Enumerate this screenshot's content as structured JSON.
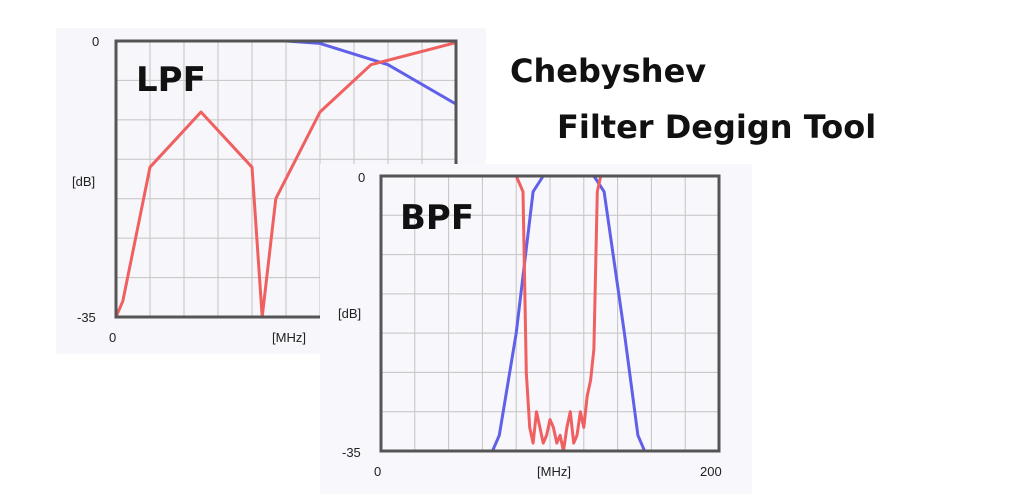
{
  "title": {
    "line1": "Chebyshev",
    "line2": "Filter Degign Tool"
  },
  "lpf": {
    "label": "LPF",
    "y_top": "0",
    "y_bottom": "-35",
    "y_unit": "[dB]",
    "x_start": "0",
    "x_unit": "[MHz]"
  },
  "bpf": {
    "label": "BPF",
    "y_top": "0",
    "y_bottom": "-35",
    "y_unit": "[dB]",
    "x_start": "0",
    "x_unit": "[MHz]",
    "x_end": "200"
  },
  "colors": {
    "transmission": "#6060e8",
    "reflection": "#f06060",
    "frame": "#555555",
    "grid": "#c4c4c4"
  },
  "chart_data": [
    {
      "type": "line",
      "ylim": [
        -35,
        0
      ],
      "grid": true,
      "series": [
        {
          "values": [
            [
              0,
              0
            ],
            [
              0.5,
              0
            ],
            [
              0.6,
              -0.3
            ],
            [
              0.8,
              -3
            ],
            [
              1.0,
              -8
            ],
            [
              1.2,
              -12
            ]
          ]
        },
        {
          "values": [
            [
              0,
              -35
            ],
            [
              0.02,
              -33
            ],
            [
              0.1,
              -16
            ],
            [
              0.25,
              -9
            ],
            [
              0.4,
              -16
            ],
            [
              0.43,
              -35
            ],
            [
              0.47,
              -20
            ],
            [
              0.6,
              -9
            ],
            [
              0.75,
              -3
            ],
            [
              1.0,
              -0.2
            ]
          ]
        }
      ]
    },
    {
      "type": "line",
      "ylim": [
        -35,
        0
      ],
      "grid": true,
      "series": [
        {
          "values": [
            [
              0,
              -35
            ],
            [
              33,
              -35
            ],
            [
              35,
              -33
            ],
            [
              40,
              -20
            ],
            [
              45,
              -2
            ],
            [
              48,
              0
            ],
            [
              63,
              0
            ],
            [
              66,
              -2
            ],
            [
              72,
              -20
            ],
            [
              76,
              -33
            ],
            [
              78,
              -35
            ],
            [
              100,
              -35
            ]
          ]
        },
        {
          "values": [
            [
              0,
              0
            ],
            [
              40,
              0
            ],
            [
              42,
              -2
            ],
            [
              43,
              -25
            ],
            [
              44,
              -32
            ],
            [
              45,
              -34
            ],
            [
              46,
              -30
            ],
            [
              47,
              -32
            ],
            [
              48,
              -34
            ],
            [
              49,
              -33
            ],
            [
              50,
              -31
            ],
            [
              51,
              -32
            ],
            [
              52,
              -34
            ],
            [
              53,
              -33
            ],
            [
              54,
              -35
            ],
            [
              55,
              -32
            ],
            [
              56,
              -30
            ],
            [
              57,
              -34
            ],
            [
              58,
              -33
            ],
            [
              59,
              -30
            ],
            [
              60,
              -32
            ],
            [
              61,
              -28
            ],
            [
              62,
              -26
            ],
            [
              63,
              -22
            ],
            [
              64,
              -2
            ],
            [
              65,
              0
            ],
            [
              100,
              0
            ]
          ]
        }
      ]
    }
  ]
}
